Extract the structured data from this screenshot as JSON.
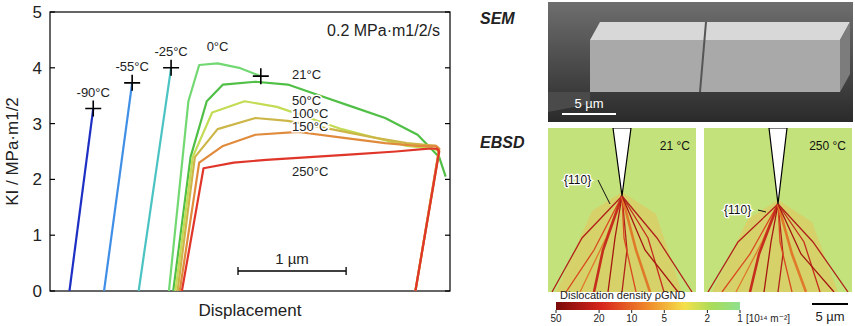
{
  "chart_data": {
    "type": "line",
    "xlabel": "Displacement",
    "ylabel": "KI / MPa·m1/2",
    "annotations": [
      "0.2 MPa·m1/2/s"
    ],
    "scale_bar": {
      "value": 1,
      "label": "1 µm"
    },
    "xlim": [
      0,
      3.7
    ],
    "ylim": [
      0,
      5
    ],
    "yticks": [
      0,
      1,
      2,
      3,
      4,
      5
    ],
    "tick_labels": "y",
    "series": [
      {
        "name": "-90°C",
        "color": "#1e2fc4",
        "marker": "plus",
        "x": [
          0.18,
          0.4
        ],
        "values": [
          0,
          3.27
        ]
      },
      {
        "name": "-55°C",
        "color": "#3f8fe6",
        "marker": "plus",
        "x": [
          0.5,
          0.76
        ],
        "values": [
          0,
          3.73
        ]
      },
      {
        "name": "-25°C",
        "color": "#4cc3c3",
        "marker": "plus",
        "x": [
          0.82,
          1.12
        ],
        "values": [
          0,
          4.0
        ]
      },
      {
        "name": "0°C",
        "color": "#72d872",
        "marker": "plus",
        "x": [
          1.1,
          1.28,
          1.38,
          1.55,
          1.75,
          1.95
        ],
        "values": [
          0,
          3.4,
          4.05,
          4.08,
          4.0,
          3.85
        ]
      },
      {
        "name": "21°C",
        "color": "#4fbf45",
        "marker": "none",
        "x": [
          1.14,
          1.3,
          1.45,
          1.6,
          1.9,
          2.2,
          2.5,
          2.8,
          3.1,
          3.4,
          3.6,
          3.66
        ],
        "values": [
          0,
          2.4,
          3.4,
          3.7,
          3.75,
          3.7,
          3.5,
          3.3,
          3.1,
          2.8,
          2.4,
          2.05
        ]
      },
      {
        "name": "50°C",
        "color": "#c3dc55",
        "marker": "none",
        "x": [
          1.16,
          1.32,
          1.5,
          1.8,
          2.1,
          2.4,
          2.7,
          3.0,
          3.3,
          3.55,
          3.6,
          3.38
        ],
        "values": [
          0,
          2.4,
          3.2,
          3.4,
          3.3,
          3.1,
          2.9,
          2.75,
          2.6,
          2.55,
          2.5,
          0
        ]
      },
      {
        "name": "100°C",
        "color": "#cdb648",
        "marker": "none",
        "x": [
          1.18,
          1.34,
          1.55,
          1.9,
          2.2,
          2.6,
          3.0,
          3.3,
          3.57,
          3.6,
          3.38
        ],
        "values": [
          0,
          2.4,
          2.9,
          3.1,
          3.05,
          2.9,
          2.75,
          2.65,
          2.6,
          2.55,
          0
        ]
      },
      {
        "name": "150°C",
        "color": "#e08a3c",
        "marker": "none",
        "x": [
          1.2,
          1.38,
          1.6,
          1.9,
          2.3,
          2.7,
          3.1,
          3.4,
          3.57,
          3.6,
          3.38
        ],
        "values": [
          0,
          2.3,
          2.6,
          2.8,
          2.85,
          2.75,
          2.65,
          2.6,
          2.6,
          2.55,
          0
        ]
      },
      {
        "name": "250°C",
        "color": "#e0362a",
        "marker": "none",
        "x": [
          1.22,
          1.42,
          1.7,
          2.0,
          2.4,
          2.8,
          3.2,
          3.5,
          3.58,
          3.6,
          3.38
        ],
        "values": [
          0,
          2.2,
          2.3,
          2.35,
          2.4,
          2.45,
          2.5,
          2.55,
          2.55,
          2.5,
          0
        ]
      }
    ]
  },
  "images": {
    "sem": {
      "label": "SEM",
      "scale_bar": "5 µm"
    },
    "ebsd": {
      "label": "EBSD",
      "maps": [
        {
          "temperature": "21 °C",
          "plane": "{110}"
        },
        {
          "temperature": "250 °C",
          "plane": "{110}"
        }
      ],
      "colorbar": {
        "label": "Dislocation density ρGND",
        "range": [
          50,
          1
        ],
        "ticks": [
          50,
          20,
          10,
          5,
          2,
          1
        ],
        "unit": "[10¹⁴ m⁻²]",
        "log": true
      },
      "scale_bar": "5 µm"
    }
  }
}
